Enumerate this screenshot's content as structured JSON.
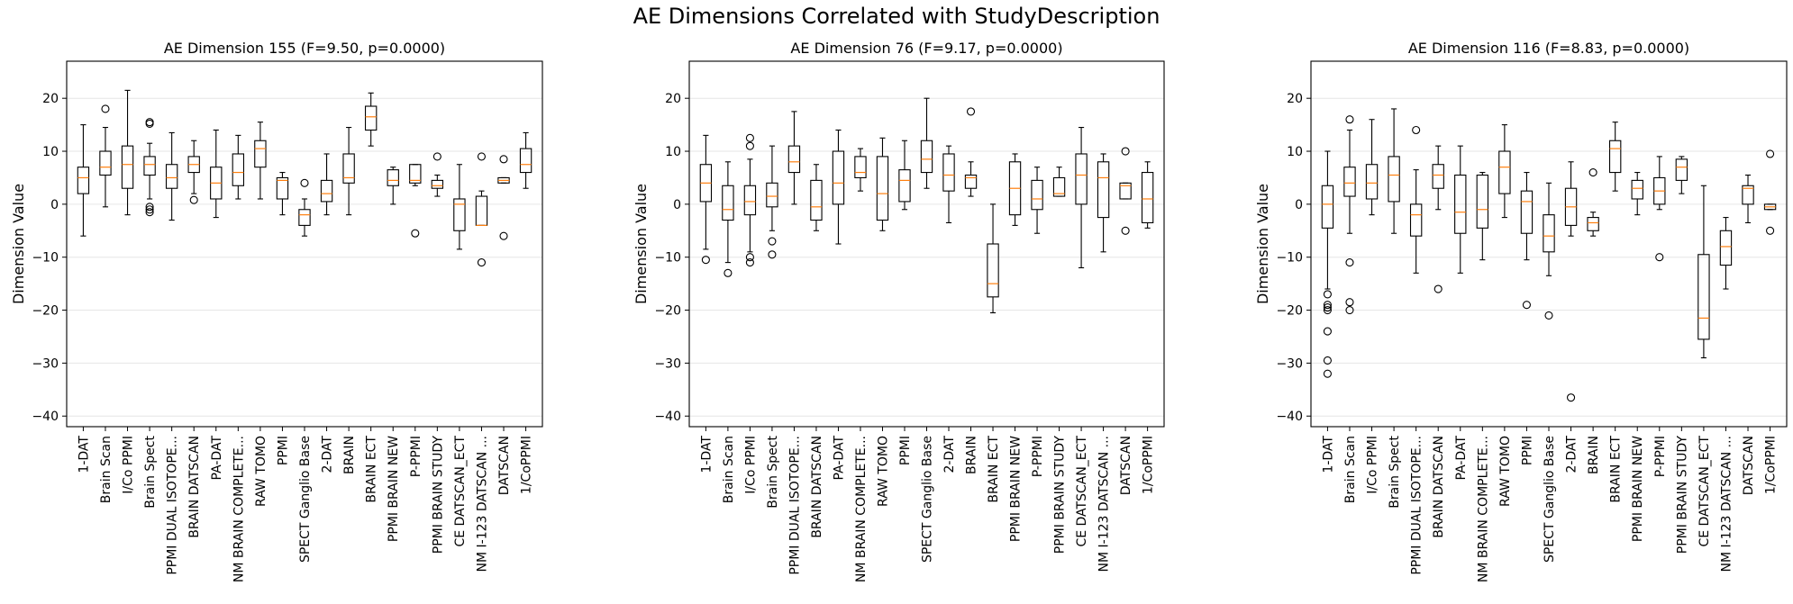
{
  "figure_title": "AE Dimensions Correlated with StudyDescription",
  "chart_data": [
    {
      "type": "box",
      "title": "AE Dimension 155 (F=9.50, p=0.0000)",
      "xlabel": "",
      "ylabel": "Dimension Value",
      "ylim": [
        -42,
        27
      ],
      "yticks": [
        20,
        10,
        0,
        -10,
        -20,
        -30,
        -40
      ],
      "grid": "y",
      "categories": [
        "1-DAT",
        "Brain Scan",
        "I/Co PPMI",
        "Brain Spect",
        "PPMI DUAL ISOTOPE...",
        "BRAIN DATSCAN",
        "PA-DAT",
        "NM BRAIN COMPLETE...",
        "RAW TOMO",
        "PPMI",
        "SPECT Ganglio  Base",
        "2-DAT",
        "BRAIN",
        "BRAIN ECT",
        "PPMI BRAIN NEW",
        "P-PPMI",
        "PPMI BRAIN STUDY",
        "CE DATSCAN_ECT",
        "NM I-123 DATSCAN ...",
        "DATSCAN",
        "1/CoPPMI"
      ],
      "boxes": [
        {
          "whislo": -6,
          "q1": 2,
          "med": 5,
          "q3": 7,
          "whishi": 15,
          "fliers": []
        },
        {
          "whislo": -0.5,
          "q1": 5.5,
          "med": 7,
          "q3": 10,
          "whishi": 14.5,
          "fliers": [
            18
          ]
        },
        {
          "whislo": -2,
          "q1": 3,
          "med": 7.5,
          "q3": 11,
          "whishi": 21.5,
          "fliers": []
        },
        {
          "whislo": 1,
          "q1": 5.5,
          "med": 7.5,
          "q3": 9,
          "whishi": 11.5,
          "fliers": [
            15.5,
            15.2,
            -0.5,
            -1,
            -1.5
          ]
        },
        {
          "whislo": -3,
          "q1": 3,
          "med": 5,
          "q3": 7.5,
          "whishi": 13.5,
          "fliers": []
        },
        {
          "whislo": 2,
          "q1": 6,
          "med": 7.5,
          "q3": 9,
          "whishi": 12,
          "fliers": [
            0.8
          ]
        },
        {
          "whislo": -2.5,
          "q1": 1,
          "med": 4,
          "q3": 7,
          "whishi": 14,
          "fliers": []
        },
        {
          "whislo": 1,
          "q1": 3.5,
          "med": 6,
          "q3": 9.5,
          "whishi": 13,
          "fliers": []
        },
        {
          "whislo": 1,
          "q1": 7,
          "med": 10.5,
          "q3": 12,
          "whishi": 15.5,
          "fliers": []
        },
        {
          "whislo": -2,
          "q1": 1,
          "med": 4.5,
          "q3": 5,
          "whishi": 6,
          "fliers": []
        },
        {
          "whislo": -6,
          "q1": -4,
          "med": -2,
          "q3": -1,
          "whishi": 1,
          "fliers": [
            4
          ]
        },
        {
          "whislo": -2,
          "q1": 0.5,
          "med": 2,
          "q3": 4.5,
          "whishi": 9.5,
          "fliers": []
        },
        {
          "whislo": -2,
          "q1": 4,
          "med": 5,
          "q3": 9.5,
          "whishi": 14.5,
          "fliers": []
        },
        {
          "whislo": 11,
          "q1": 14,
          "med": 16.5,
          "q3": 18.5,
          "whishi": 21,
          "fliers": []
        },
        {
          "whislo": 0,
          "q1": 3.5,
          "med": 4.5,
          "q3": 6.5,
          "whishi": 7,
          "fliers": []
        },
        {
          "whislo": 3.5,
          "q1": 4,
          "med": 4.5,
          "q3": 7.5,
          "whishi": 7.5,
          "fliers": [
            -5.5
          ]
        },
        {
          "whislo": 1.5,
          "q1": 3,
          "med": 3.5,
          "q3": 4.5,
          "whishi": 5.5,
          "fliers": [
            9
          ]
        },
        {
          "whislo": -8.5,
          "q1": -5,
          "med": 0,
          "q3": 1,
          "whishi": 7.5,
          "fliers": []
        },
        {
          "whislo": -4,
          "q1": -4,
          "med": -4,
          "q3": 1.5,
          "whishi": 2.5,
          "fliers": [
            9,
            -11
          ]
        },
        {
          "whislo": 4,
          "q1": 4,
          "med": 4.5,
          "q3": 5,
          "whishi": 5,
          "fliers": [
            8.5,
            -6
          ]
        },
        {
          "whislo": 3,
          "q1": 6,
          "med": 7.5,
          "q3": 10.5,
          "whishi": 13.5,
          "fliers": []
        }
      ]
    },
    {
      "type": "box",
      "title": "AE Dimension 76 (F=9.17, p=0.0000)",
      "xlabel": "",
      "ylabel": "Dimension Value",
      "ylim": [
        -42,
        27
      ],
      "yticks": [
        20,
        10,
        0,
        -10,
        -20,
        -30,
        -40
      ],
      "grid": "y",
      "categories": [
        "1-DAT",
        "Brain Scan",
        "I/Co PPMI",
        "Brain Spect",
        "PPMI DUAL ISOTOPE...",
        "BRAIN DATSCAN",
        "PA-DAT",
        "NM BRAIN COMPLETE...",
        "RAW TOMO",
        "PPMI",
        "SPECT Ganglio  Base",
        "2-DAT",
        "BRAIN",
        "BRAIN ECT",
        "PPMI BRAIN NEW",
        "P-PPMI",
        "PPMI BRAIN STUDY",
        "CE DATSCAN_ECT",
        "NM I-123 DATSCAN ...",
        "DATSCAN",
        "1/CoPPMI"
      ],
      "boxes": [
        {
          "whislo": -8.5,
          "q1": 0.5,
          "med": 4,
          "q3": 7.5,
          "whishi": 13,
          "fliers": [
            -10.5
          ]
        },
        {
          "whislo": -11,
          "q1": -3,
          "med": -1,
          "q3": 3.5,
          "whishi": 8,
          "fliers": [
            -13
          ]
        },
        {
          "whislo": -9,
          "q1": -2,
          "med": 0.5,
          "q3": 3.5,
          "whishi": 8.5,
          "fliers": [
            12.5,
            11,
            -10,
            -11
          ]
        },
        {
          "whislo": -5,
          "q1": -0.5,
          "med": 1.5,
          "q3": 4,
          "whishi": 11,
          "fliers": [
            -7,
            -9.5
          ]
        },
        {
          "whislo": 0,
          "q1": 6,
          "med": 8,
          "q3": 11,
          "whishi": 17.5,
          "fliers": []
        },
        {
          "whislo": -5,
          "q1": -3,
          "med": -0.5,
          "q3": 4.5,
          "whishi": 7.5,
          "fliers": []
        },
        {
          "whislo": -7.5,
          "q1": 0,
          "med": 4,
          "q3": 10,
          "whishi": 14,
          "fliers": []
        },
        {
          "whislo": 2.5,
          "q1": 5,
          "med": 6,
          "q3": 9,
          "whishi": 10.5,
          "fliers": []
        },
        {
          "whislo": -5,
          "q1": -3,
          "med": 2,
          "q3": 9,
          "whishi": 12.5,
          "fliers": []
        },
        {
          "whislo": -1,
          "q1": 0.5,
          "med": 4.5,
          "q3": 6.5,
          "whishi": 12,
          "fliers": []
        },
        {
          "whislo": 3,
          "q1": 6,
          "med": 8.5,
          "q3": 12,
          "whishi": 20,
          "fliers": []
        },
        {
          "whislo": -3.5,
          "q1": 2.5,
          "med": 5.5,
          "q3": 9.5,
          "whishi": 11,
          "fliers": []
        },
        {
          "whislo": 1.5,
          "q1": 3,
          "med": 5,
          "q3": 5.5,
          "whishi": 8,
          "fliers": [
            17.5
          ]
        },
        {
          "whislo": -20.5,
          "q1": -17.5,
          "med": -15,
          "q3": -7.5,
          "whishi": 0,
          "fliers": []
        },
        {
          "whislo": -4,
          "q1": -2,
          "med": 3,
          "q3": 8,
          "whishi": 9.5,
          "fliers": []
        },
        {
          "whislo": -5.5,
          "q1": -1,
          "med": 1,
          "q3": 4.5,
          "whishi": 7,
          "fliers": []
        },
        {
          "whislo": 1.5,
          "q1": 1.5,
          "med": 2,
          "q3": 5,
          "whishi": 7,
          "fliers": []
        },
        {
          "whislo": -12,
          "q1": 0,
          "med": 5.5,
          "q3": 9.5,
          "whishi": 14.5,
          "fliers": []
        },
        {
          "whislo": -9,
          "q1": -2.5,
          "med": 5,
          "q3": 8,
          "whishi": 9.5,
          "fliers": []
        },
        {
          "whislo": 1,
          "q1": 1,
          "med": 3.5,
          "q3": 4,
          "whishi": 4,
          "fliers": [
            10,
            -5
          ]
        },
        {
          "whislo": -4.5,
          "q1": -3.5,
          "med": 1,
          "q3": 6,
          "whishi": 8,
          "fliers": []
        }
      ]
    },
    {
      "type": "box",
      "title": "AE Dimension 116 (F=8.83, p=0.0000)",
      "xlabel": "",
      "ylabel": "Dimension Value",
      "ylim": [
        -42,
        27
      ],
      "yticks": [
        20,
        10,
        0,
        -10,
        -20,
        -30,
        -40
      ],
      "grid": "y",
      "categories": [
        "1-DAT",
        "Brain Scan",
        "I/Co PPMI",
        "Brain Spect",
        "PPMI DUAL ISOTOPE...",
        "BRAIN DATSCAN",
        "PA-DAT",
        "NM BRAIN COMPLETE...",
        "RAW TOMO",
        "PPMI",
        "SPECT Ganglio  Base",
        "2-DAT",
        "BRAIN",
        "BRAIN ECT",
        "PPMI BRAIN NEW",
        "P-PPMI",
        "PPMI BRAIN STUDY",
        "CE DATSCAN_ECT",
        "NM I-123 DATSCAN ...",
        "DATSCAN",
        "1/CoPPMI"
      ],
      "boxes": [
        {
          "whislo": -16,
          "q1": -4.5,
          "med": 0,
          "q3": 3.5,
          "whishi": 10,
          "fliers": [
            -17,
            -19,
            -19.5,
            -20,
            -24,
            -29.5,
            -32
          ]
        },
        {
          "whislo": -5.5,
          "q1": 1.5,
          "med": 4,
          "q3": 7,
          "whishi": 14,
          "fliers": [
            16,
            -11,
            -18.5,
            -20
          ]
        },
        {
          "whislo": -2,
          "q1": 1,
          "med": 4,
          "q3": 7.5,
          "whishi": 16,
          "fliers": []
        },
        {
          "whislo": -5.5,
          "q1": 0.5,
          "med": 5.5,
          "q3": 9,
          "whishi": 18,
          "fliers": []
        },
        {
          "whislo": -13,
          "q1": -6,
          "med": -2,
          "q3": 0,
          "whishi": 6.5,
          "fliers": [
            14
          ]
        },
        {
          "whislo": -1,
          "q1": 3,
          "med": 5.5,
          "q3": 7.5,
          "whishi": 11,
          "fliers": [
            -16
          ]
        },
        {
          "whislo": -13,
          "q1": -5.5,
          "med": -1.5,
          "q3": 5.5,
          "whishi": 11,
          "fliers": []
        },
        {
          "whislo": -10.5,
          "q1": -4.5,
          "med": -1,
          "q3": 5.5,
          "whishi": 6,
          "fliers": []
        },
        {
          "whislo": -2.5,
          "q1": 2,
          "med": 7,
          "q3": 10,
          "whishi": 15,
          "fliers": []
        },
        {
          "whislo": -10.5,
          "q1": -5.5,
          "med": 0.5,
          "q3": 2.5,
          "whishi": 6,
          "fliers": [
            -19
          ]
        },
        {
          "whislo": -13.5,
          "q1": -9,
          "med": -6,
          "q3": -2,
          "whishi": 4,
          "fliers": [
            -21
          ]
        },
        {
          "whislo": -6,
          "q1": -4,
          "med": -0.5,
          "q3": 3,
          "whishi": 8,
          "fliers": [
            -36.5
          ]
        },
        {
          "whislo": -6,
          "q1": -5,
          "med": -3.5,
          "q3": -2.5,
          "whishi": -1.5,
          "fliers": [
            6
          ]
        },
        {
          "whislo": 2.5,
          "q1": 6,
          "med": 10.5,
          "q3": 12,
          "whishi": 15.5,
          "fliers": []
        },
        {
          "whislo": -2,
          "q1": 1,
          "med": 3,
          "q3": 4.5,
          "whishi": 6,
          "fliers": []
        },
        {
          "whislo": -1,
          "q1": 0,
          "med": 2.5,
          "q3": 5,
          "whishi": 9,
          "fliers": [
            -10
          ]
        },
        {
          "whislo": 2,
          "q1": 4.5,
          "med": 7,
          "q3": 8.5,
          "whishi": 9,
          "fliers": []
        },
        {
          "whislo": -29,
          "q1": -25.5,
          "med": -21.5,
          "q3": -9.5,
          "whishi": 3.5,
          "fliers": []
        },
        {
          "whislo": -16,
          "q1": -11.5,
          "med": -8,
          "q3": -5,
          "whishi": -2.5,
          "fliers": []
        },
        {
          "whislo": -3.5,
          "q1": 0,
          "med": 3,
          "q3": 3.5,
          "whishi": 5.5,
          "fliers": []
        },
        {
          "whislo": -1,
          "q1": -1,
          "med": -0.5,
          "q3": 0,
          "whishi": 0,
          "fliers": [
            9.5,
            -5
          ]
        }
      ]
    }
  ]
}
